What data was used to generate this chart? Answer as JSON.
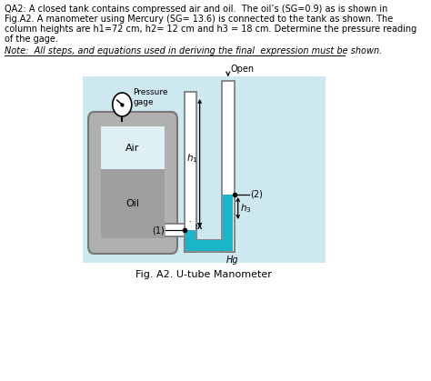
{
  "title": "Fig. A2. U-tube Manometer",
  "question_line1": "QA2: A closed tank contains compressed air and oil.  The oil’s (SG=0.9) as is shown in",
  "question_line2": "Fig.A2. A manometer using Mercury (SG= 13.6) is connected to the tank as shown. The",
  "question_line3": "column heights are h1=72 cm, h2= 12 cm and h3 = 18 cm. Determine the pressure reading",
  "question_line4": "of the gage.",
  "note_text": "Note:  All steps, and equations used in deriving the final  expression must be shown.",
  "bg_color": "#cde8ef",
  "tank_outer_color": "#b0b0b0",
  "air_color": "#dff0f5",
  "oil_color": "#9e9e9e",
  "mercury_color": "#1ab5c8",
  "pipe_fill_color": "#dff0f5",
  "white": "#ffffff",
  "black": "#000000",
  "gray_edge": "#777777"
}
